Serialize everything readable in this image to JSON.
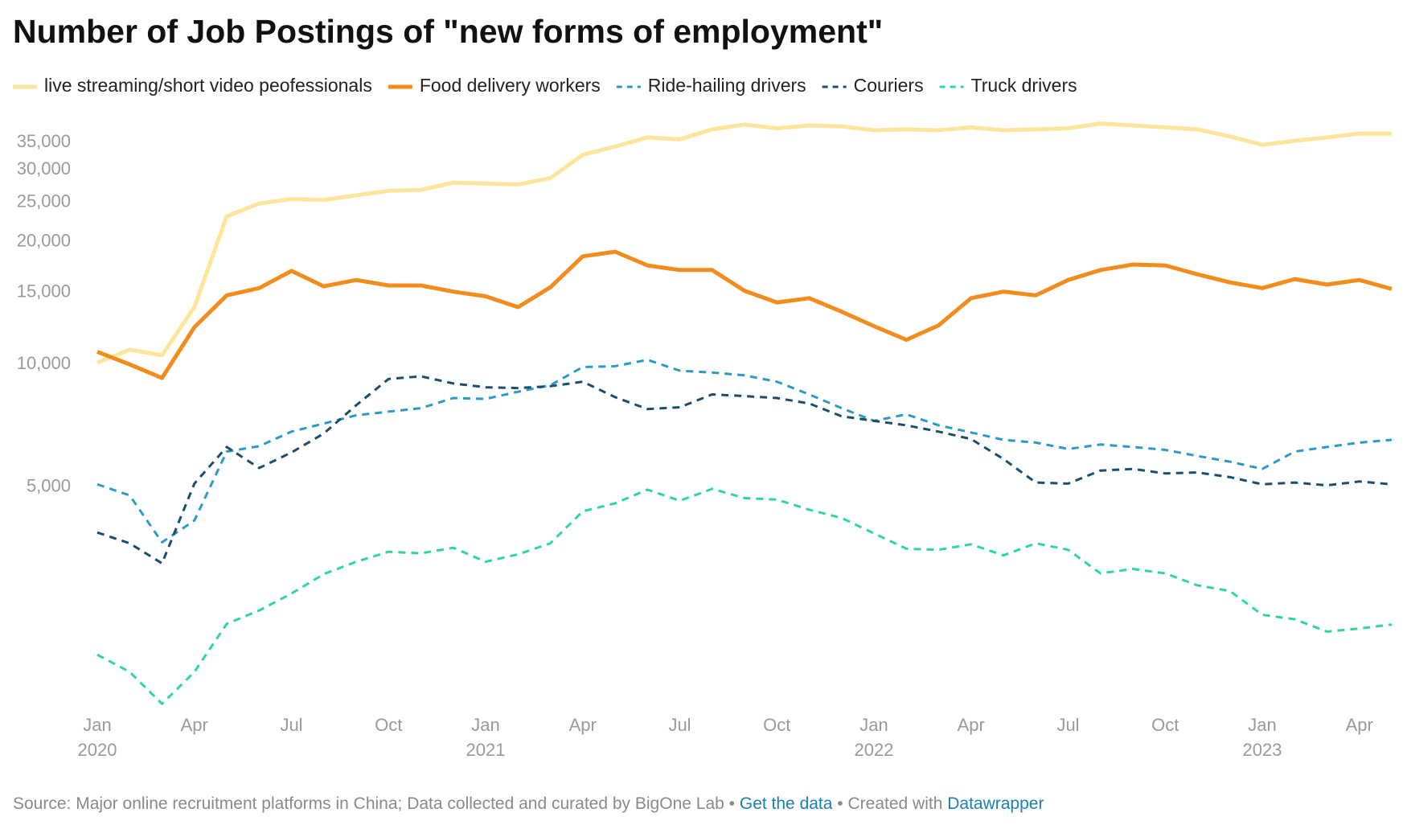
{
  "chart_data": {
    "type": "line",
    "title": "Number of Job Postings of \"new forms of employment\"",
    "log_scale": true,
    "grid": false,
    "x": [
      "2020-01",
      "2020-02",
      "2020-03",
      "2020-04",
      "2020-05",
      "2020-06",
      "2020-07",
      "2020-08",
      "2020-09",
      "2020-10",
      "2020-11",
      "2020-12",
      "2021-01",
      "2021-02",
      "2021-03",
      "2021-04",
      "2021-05",
      "2021-06",
      "2021-07",
      "2021-08",
      "2021-09",
      "2021-10",
      "2021-11",
      "2021-12",
      "2022-01",
      "2022-02",
      "2022-03",
      "2022-04",
      "2022-05",
      "2022-06",
      "2022-07",
      "2022-08",
      "2022-09",
      "2022-10",
      "2022-11",
      "2022-12",
      "2023-01",
      "2023-02",
      "2023-03",
      "2023-04",
      "2023-05"
    ],
    "xlim": [
      "2020-01",
      "2023-05"
    ],
    "xticks": [
      {
        "value": "2020-01",
        "label": "Jan",
        "year": "2020"
      },
      {
        "value": "2020-04",
        "label": "Apr"
      },
      {
        "value": "2020-07",
        "label": "Jul"
      },
      {
        "value": "2020-10",
        "label": "Oct"
      },
      {
        "value": "2021-01",
        "label": "Jan",
        "year": "2021"
      },
      {
        "value": "2021-04",
        "label": "Apr"
      },
      {
        "value": "2021-07",
        "label": "Jul"
      },
      {
        "value": "2021-10",
        "label": "Oct"
      },
      {
        "value": "2022-01",
        "label": "Jan",
        "year": "2022"
      },
      {
        "value": "2022-04",
        "label": "Apr"
      },
      {
        "value": "2022-07",
        "label": "Jul"
      },
      {
        "value": "2022-10",
        "label": "Oct"
      },
      {
        "value": "2023-01",
        "label": "Jan",
        "year": "2023"
      },
      {
        "value": "2023-04",
        "label": "Apr"
      }
    ],
    "ylim": [
      1400,
      40000
    ],
    "yticks": [
      {
        "value": 5000,
        "label": "5,000"
      },
      {
        "value": 10000,
        "label": "10,000"
      },
      {
        "value": 15000,
        "label": "15,000"
      },
      {
        "value": 20000,
        "label": "20,000"
      },
      {
        "value": 25000,
        "label": "25,000"
      },
      {
        "value": 30000,
        "label": "30,000"
      },
      {
        "value": 35000,
        "label": "35,000"
      }
    ],
    "series": [
      {
        "name": "live streaming/short video peofessionals",
        "color": "#fde59b",
        "dashed": false,
        "values": [
          10100,
          10860,
          10530,
          13820,
          23090,
          24820,
          25460,
          25330,
          25990,
          26660,
          26800,
          27920,
          27780,
          27640,
          28640,
          32680,
          34230,
          36040,
          35660,
          37730,
          38790,
          37940,
          38580,
          38370,
          37530,
          37730,
          37530,
          38160,
          37530,
          37730,
          37940,
          38990,
          38580,
          38160,
          37730,
          36240,
          34580,
          35370,
          36040,
          36850,
          36850
        ]
      },
      {
        "name": "Food delivery workers",
        "color": "#f28c1c",
        "dashed": false,
        "values": [
          10745,
          10000,
          9260,
          12340,
          14770,
          15390,
          16960,
          15540,
          16110,
          15620,
          15620,
          15080,
          14690,
          13820,
          15460,
          18410,
          18900,
          17490,
          17040,
          17040,
          15160,
          14190,
          14540,
          13470,
          12410,
          11490,
          12470,
          14540,
          15080,
          14770,
          16110,
          17040,
          17580,
          17490,
          16630,
          15890,
          15390,
          16190,
          15700,
          16110,
          15310
        ]
      },
      {
        "name": "Ride-hailing drivers",
        "color": "#2a9bc5",
        "dashed": true,
        "values": [
          5080,
          4770,
          3660,
          4140,
          6110,
          6300,
          6840,
          7160,
          7500,
          7660,
          7810,
          8270,
          8230,
          8570,
          8890,
          9850,
          9900,
          10260,
          9650,
          9550,
          9400,
          9070,
          8440,
          7810,
          7270,
          7540,
          7090,
          6810,
          6530,
          6430,
          6200,
          6360,
          6270,
          6170,
          5960,
          5770,
          5540,
          6110,
          6270,
          6430,
          6530
        ]
      },
      {
        "name": "Couriers",
        "color": "#1b4e6c",
        "dashed": true,
        "values": [
          3870,
          3640,
          3250,
          5100,
          6270,
          5570,
          6080,
          6770,
          7940,
          9210,
          9350,
          8980,
          8790,
          8750,
          8840,
          9070,
          8310,
          7770,
          7850,
          8440,
          8360,
          8270,
          8020,
          7460,
          7270,
          7090,
          6840,
          6560,
          5860,
          5130,
          5100,
          5490,
          5540,
          5400,
          5430,
          5290,
          5080,
          5130,
          5050,
          5160,
          5080
        ]
      },
      {
        "name": "Truck drivers",
        "color": "#2fd5a7",
        "dashed": true,
        "values": [
          1940,
          1760,
          1470,
          1760,
          2310,
          2490,
          2740,
          3060,
          3280,
          3470,
          3440,
          3550,
          3280,
          3420,
          3640,
          4360,
          4560,
          4930,
          4630,
          4950,
          4700,
          4660,
          4400,
          4200,
          3850,
          3530,
          3510,
          3620,
          3400,
          3640,
          3510,
          3070,
          3150,
          3070,
          2870,
          2780,
          2430,
          2370,
          2210,
          2250,
          2300
        ]
      }
    ],
    "footer": {
      "source": "Source: Major online recruitment platforms in China; Data collected and curated by BigOne Lab",
      "separator": "•",
      "get_data": "Get the data",
      "created_with": "Created with",
      "datawrapper": "Datawrapper"
    }
  }
}
